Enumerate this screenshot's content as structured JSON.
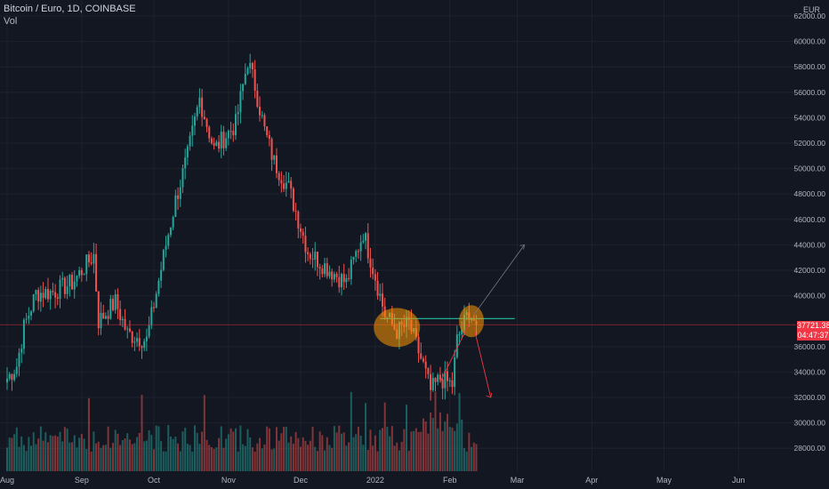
{
  "header": {
    "symbol_line": "Bitcoin / Euro, 1D, COINBASE",
    "volume_label": "Vol"
  },
  "axis": {
    "currency": "EUR",
    "y_ticks": [
      "62000.00",
      "60000.00",
      "58000.00",
      "56000.00",
      "54000.00",
      "52000.00",
      "50000.00",
      "48000.00",
      "46000.00",
      "44000.00",
      "42000.00",
      "40000.00",
      "36000.00",
      "34000.00",
      "32000.00",
      "30000.00",
      "28000.00"
    ],
    "x_ticks": [
      "Aug",
      "Sep",
      "Oct",
      "Nov",
      "Dec",
      "2022",
      "Feb",
      "Mar",
      "Apr",
      "May",
      "Jun"
    ]
  },
  "last_price": {
    "value": "37721.38",
    "countdown": "04:47:37"
  },
  "colors": {
    "background": "#131722",
    "up": "#26a69a",
    "down": "#ef5350",
    "grid": "#1e222d",
    "price_line": "#f23645",
    "resistance_line": "#22ab94",
    "highlight": "#ff9800",
    "projection_up": "#787b86",
    "projection_down": "#f23645"
  },
  "chart_data": {
    "type": "candlestick",
    "title": "Bitcoin / Euro, 1D, COINBASE",
    "ylabel": "EUR",
    "ylim": [
      27000,
      63000
    ],
    "x_ticks": [
      "Aug",
      "Sep",
      "Oct",
      "Nov",
      "Dec",
      "2022",
      "Feb",
      "Mar",
      "Apr",
      "May",
      "Jun"
    ],
    "close_keypoints": [
      {
        "date": "2021-08-01",
        "close": 33500
      },
      {
        "date": "2021-08-05",
        "close": 34500
      },
      {
        "date": "2021-08-08",
        "close": 37500
      },
      {
        "date": "2021-08-13",
        "close": 40200
      },
      {
        "date": "2021-08-20",
        "close": 40300
      },
      {
        "date": "2021-08-28",
        "close": 41000
      },
      {
        "date": "2021-09-06",
        "close": 43200
      },
      {
        "date": "2021-09-08",
        "close": 38000
      },
      {
        "date": "2021-09-15",
        "close": 39500
      },
      {
        "date": "2021-09-20",
        "close": 37000
      },
      {
        "date": "2021-09-28",
        "close": 36500
      },
      {
        "date": "2021-10-06",
        "close": 44000
      },
      {
        "date": "2021-10-10",
        "close": 47500
      },
      {
        "date": "2021-10-15",
        "close": 51000
      },
      {
        "date": "2021-10-20",
        "close": 55500
      },
      {
        "date": "2021-10-26",
        "close": 51500
      },
      {
        "date": "2021-11-04",
        "close": 53500
      },
      {
        "date": "2021-11-09",
        "close": 58500
      },
      {
        "date": "2021-11-12",
        "close": 56500
      },
      {
        "date": "2021-11-16",
        "close": 53000
      },
      {
        "date": "2021-11-20",
        "close": 50500
      },
      {
        "date": "2021-11-26",
        "close": 48500
      },
      {
        "date": "2021-12-04",
        "close": 43500
      },
      {
        "date": "2021-12-10",
        "close": 42500
      },
      {
        "date": "2021-12-20",
        "close": 41000
      },
      {
        "date": "2021-12-27",
        "close": 45000
      },
      {
        "date": "2022-01-01",
        "close": 41500
      },
      {
        "date": "2022-01-05",
        "close": 38500
      },
      {
        "date": "2022-01-10",
        "close": 37200
      },
      {
        "date": "2022-01-15",
        "close": 37800
      },
      {
        "date": "2022-01-21",
        "close": 34500
      },
      {
        "date": "2022-01-24",
        "close": 32500
      },
      {
        "date": "2022-01-28",
        "close": 33500
      },
      {
        "date": "2022-02-02",
        "close": 33000
      },
      {
        "date": "2022-02-04",
        "close": 36500
      },
      {
        "date": "2022-02-09",
        "close": 38800
      },
      {
        "date": "2022-02-12",
        "close": 37721
      }
    ],
    "last_price": 37721.38,
    "annotations": {
      "resistance_level": 38200,
      "highlight_zones": [
        {
          "date": "2022-01-10",
          "price": 37500
        },
        {
          "date": "2022-02-10",
          "price": 38000
        }
      ],
      "projection_up": [
        {
          "date": "2022-02-11",
          "price": 38500
        },
        {
          "date": "2022-03-04",
          "price": 44000
        }
      ],
      "projection_down": [
        {
          "date": "2022-02-11",
          "price": 37500
        },
        {
          "date": "2022-02-18",
          "price": 32000
        }
      ]
    }
  }
}
